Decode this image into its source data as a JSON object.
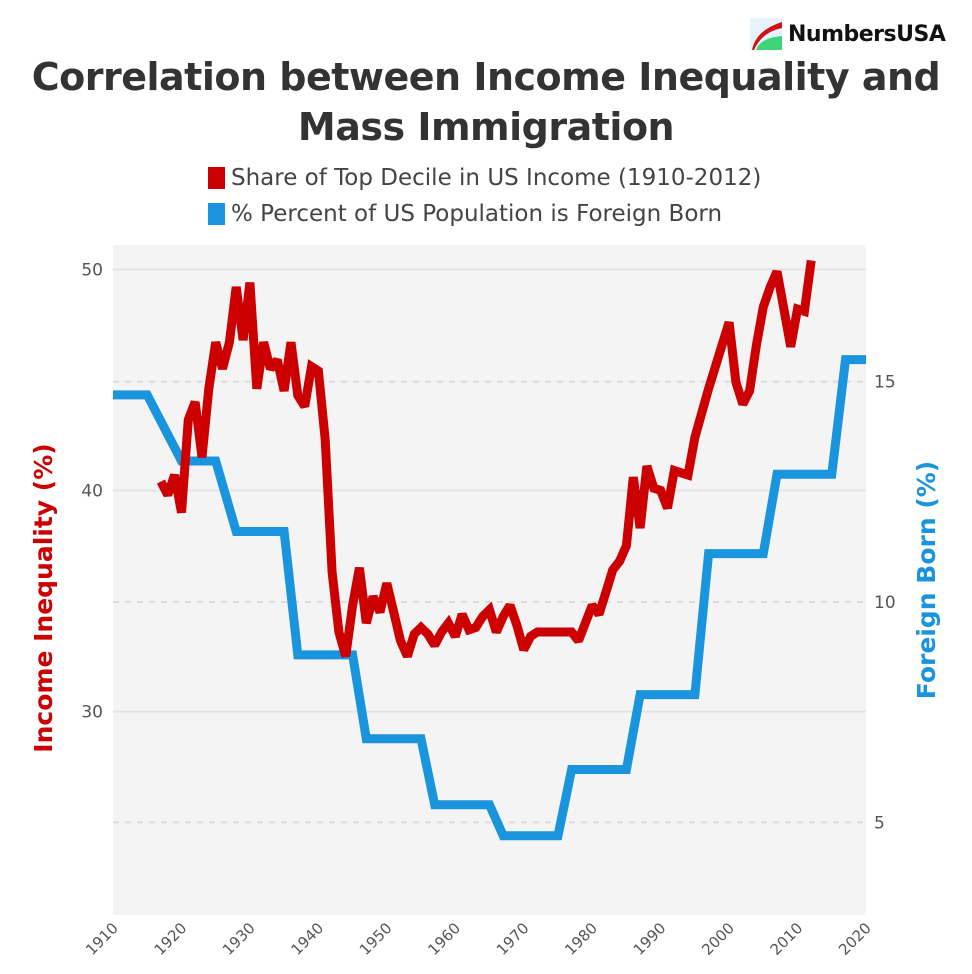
{
  "logo": {
    "text": "NumbersUSA"
  },
  "chart_data": {
    "type": "line",
    "title": "Correlation between Income Inequality and Mass Immigration",
    "legend_placement": "top",
    "grid": true,
    "xlim": [
      1910,
      2020
    ],
    "x_ticks": [
      "1910",
      "1920",
      "1930",
      "1940",
      "1950",
      "1960",
      "1970",
      "1980",
      "1990",
      "2000",
      "2010",
      "2020"
    ],
    "y_left": {
      "label": "Income Inequality (%)",
      "range": [
        20.8,
        51.1
      ],
      "ticks": [
        "30",
        "40",
        "50"
      ],
      "color": "#cc0000"
    },
    "y_right": {
      "label": "Foreign Born (%)",
      "range": [
        2.9,
        18.1
      ],
      "ticks": [
        "5",
        "10",
        "15"
      ],
      "color": "#1a94dd"
    },
    "series": [
      {
        "name": "Share of Top Decile in US Income (1910-2012)",
        "axis": "left",
        "color": "#cc0000",
        "x": [
          1917,
          1918,
          1919,
          1920,
          1921,
          1922,
          1923,
          1924,
          1925,
          1926,
          1927,
          1928,
          1929,
          1930,
          1931,
          1932,
          1933,
          1934,
          1935,
          1936,
          1937,
          1938,
          1939,
          1940,
          1941,
          1942,
          1943,
          1944,
          1945,
          1946,
          1947,
          1948,
          1949,
          1950,
          1951,
          1952,
          1953,
          1954,
          1955,
          1956,
          1957,
          1958,
          1959,
          1960,
          1961,
          1962,
          1963,
          1964,
          1965,
          1966,
          1967,
          1968,
          1969,
          1970,
          1971,
          1972,
          1973,
          1974,
          1975,
          1976,
          1977,
          1978,
          1979,
          1980,
          1981,
          1982,
          1983,
          1984,
          1985,
          1986,
          1987,
          1988,
          1989,
          1990,
          1991,
          1992,
          1993,
          1994,
          1995,
          1996,
          1997,
          1998,
          1999,
          2000,
          2001,
          2002,
          2003,
          2004,
          2005,
          2006,
          2007,
          2008,
          2009,
          2010,
          2011,
          2012
        ],
        "y": [
          40.4,
          39.8,
          40.7,
          39.0,
          43.2,
          44.0,
          41.5,
          44.6,
          46.7,
          45.5,
          46.7,
          49.2,
          46.8,
          49.4,
          44.6,
          46.7,
          45.5,
          45.9,
          44.5,
          46.7,
          44.3,
          43.8,
          45.6,
          45.4,
          42.3,
          36.3,
          33.6,
          32.5,
          34.8,
          36.5,
          34.0,
          35.2,
          34.5,
          35.8,
          34.5,
          33.2,
          32.5,
          33.5,
          33.8,
          33.5,
          33.0,
          33.6,
          34.0,
          33.4,
          34.4,
          33.7,
          33.8,
          34.3,
          34.6,
          33.6,
          34.3,
          34.8,
          33.9,
          32.8,
          33.4,
          33.6,
          33.6,
          33.6,
          33.6,
          33.6,
          33.6,
          33.2,
          34.0,
          34.8,
          34.4,
          35.4,
          36.4,
          36.8,
          37.5,
          40.6,
          38.3,
          41.1,
          40.1,
          40.0,
          39.2,
          40.9,
          40.8,
          40.7,
          42.4,
          43.5,
          44.6,
          45.6,
          46.6,
          47.6,
          44.9,
          43.9,
          44.5,
          46.6,
          48.3,
          49.2,
          49.9,
          48.2,
          46.5,
          48.2,
          48.1,
          50.4
        ]
      },
      {
        "name": "% Percent of US Population is Foreign Born",
        "axis": "right",
        "color": "#1a94dd",
        "x": [
          1910,
          1915,
          1920,
          1925,
          1928,
          1935,
          1937,
          1945,
          1947,
          1955,
          1957,
          1965,
          1967,
          1975,
          1977,
          1985,
          1987,
          1995,
          1997,
          2005,
          2007,
          2015,
          2017,
          2020
        ],
        "y": [
          14.7,
          14.7,
          13.2,
          13.2,
          11.6,
          11.6,
          8.8,
          8.8,
          6.9,
          6.9,
          5.4,
          5.4,
          4.7,
          4.7,
          6.2,
          6.2,
          7.9,
          7.9,
          11.1,
          11.1,
          12.9,
          12.9,
          15.5,
          15.5
        ]
      }
    ]
  }
}
